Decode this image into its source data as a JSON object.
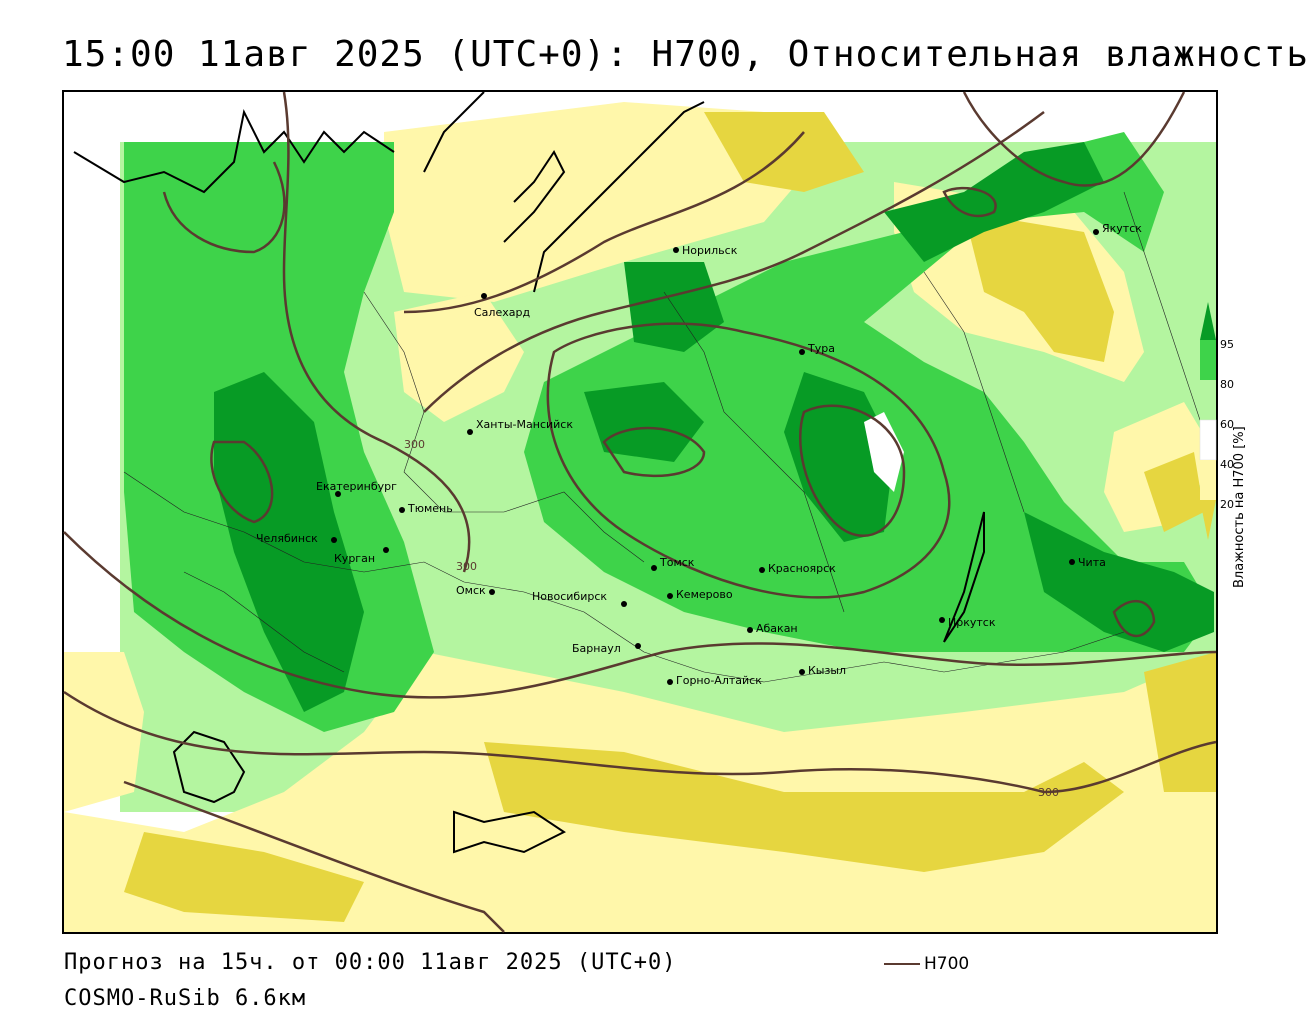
{
  "title": "15:00 11авг 2025 (UTC+0): H700, Относительная влажность",
  "footer": {
    "forecast": "Прогноз на 15ч. от 00:00 11авг 2025 (UTC+0)",
    "model": "COSMO-RuSib 6.6км",
    "contour_legend": "H700"
  },
  "legend": {
    "title": "Влажность на H700 [%]",
    "ticks": [
      "95",
      "80",
      "60",
      "40",
      "20"
    ]
  },
  "colors": {
    "dark_green": "#079b25",
    "green": "#3ed34a",
    "light_green": "#b4f5a0",
    "pale_yellow": "#fff7aa",
    "yellow": "#e6d640",
    "contour": "#5a3a30"
  },
  "contour_labels": [
    "300",
    "300",
    "300"
  ],
  "cities": [
    {
      "name": "Якутск"
    },
    {
      "name": "Норильск"
    },
    {
      "name": "Салехард"
    },
    {
      "name": "Тура"
    },
    {
      "name": "Ханты-Мансийск"
    },
    {
      "name": "Екатеринбург"
    },
    {
      "name": "Тюмень"
    },
    {
      "name": "Челябинск"
    },
    {
      "name": "Курган"
    },
    {
      "name": "Омск"
    },
    {
      "name": "Новосибирск"
    },
    {
      "name": "Томск"
    },
    {
      "name": "Кемерово"
    },
    {
      "name": "Красноярск"
    },
    {
      "name": "Абакан"
    },
    {
      "name": "Барнаул"
    },
    {
      "name": "Горно-Алтайск"
    },
    {
      "name": "Кызыл"
    },
    {
      "name": "Иркутск"
    },
    {
      "name": "Чита"
    }
  ]
}
